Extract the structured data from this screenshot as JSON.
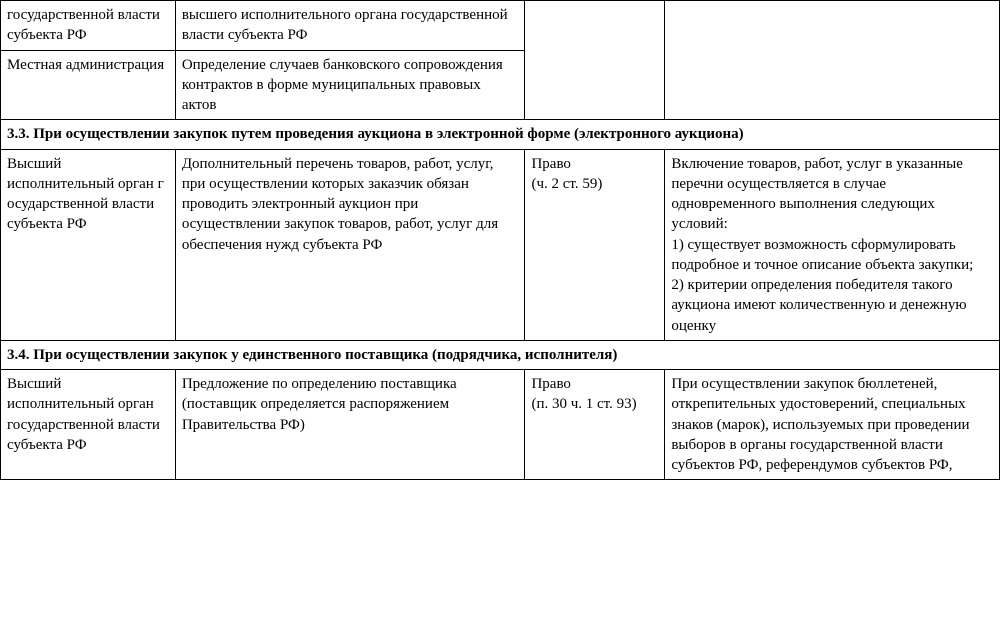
{
  "table": {
    "columns": {
      "count": 4
    },
    "border_color": "#000000",
    "background_color": "#ffffff",
    "text_color": "#000000",
    "font_family": "Times New Roman",
    "font_size_pt": 11,
    "rows": [
      {
        "cells": [
          {
            "text": "государственной власти субъекта РФ"
          },
          {
            "text": "высшего исполнительного органа государственной власти субъекта РФ"
          },
          {
            "text": "",
            "rowspan": 2
          },
          {
            "text": "",
            "rowspan": 2
          }
        ]
      },
      {
        "cells": [
          {
            "text": "Местная администрация"
          },
          {
            "text": "Определение случаев банковского сопровождения контрактов в форме муниципальных правовых актов"
          }
        ]
      },
      {
        "header": true,
        "cells": [
          {
            "text": "3.3. При осуществлении закупок путем проведения аукциона в электронной форме (электронного аукциона)",
            "colspan": 4
          }
        ]
      },
      {
        "cells": [
          {
            "text": "Высший исполнительный орган г осударственной власти субъекта РФ"
          },
          {
            "text": "Дополнительный перечень товаров, работ, услуг, при осуществлении которых заказчик обязан проводить электронный аукцион при осуществлении закупок товаров, работ, услуг для обеспечения нужд субъекта РФ"
          },
          {
            "text": "Право\n(ч. 2 ст. 59)"
          },
          {
            "text": "Включение товаров, работ, услуг в указанные перечни осуществляется в случае одновременного выполнения следующих условий:\n1) существует возможность сформулировать подробное и точное описание объекта закупки;\n2) критерии определения победителя такого аукциона имеют количественную и денежную оценку"
          }
        ]
      },
      {
        "header": true,
        "cells": [
          {
            "text": "3.4. При осуществлении закупок у единственного поставщика (подрядчика, исполнителя)",
            "colspan": 4
          }
        ]
      },
      {
        "cells": [
          {
            "text": "Высший исполнительный орган государственной власти субъекта РФ"
          },
          {
            "text": "Предложение по определению поставщика (поставщик определяется распоряжением Правительства РФ)"
          },
          {
            "text": "Право\n(п. 30 ч. 1 ст. 93)"
          },
          {
            "text": "При осуществлении закупок бюллетеней, открепительных удостоверений, специальных знаков (марок), используемых при проведении выборов в органы государственной власти субъектов РФ, референдумов субъектов РФ,"
          }
        ]
      }
    ]
  }
}
